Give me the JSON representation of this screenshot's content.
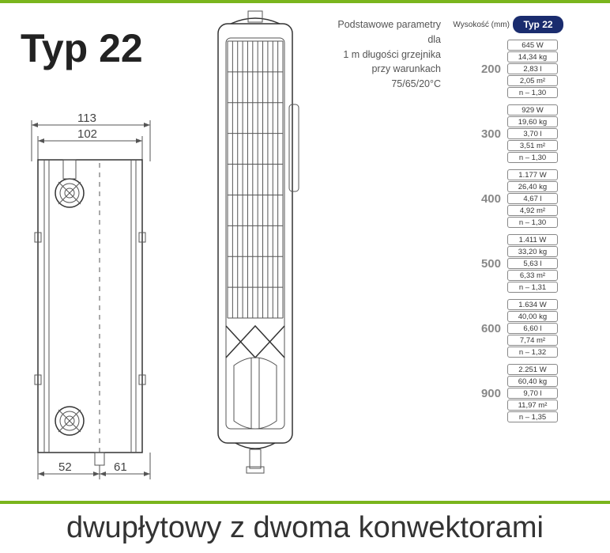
{
  "title": "Typ 22",
  "params": {
    "line1": "Podstawowe parametry dla",
    "line2": "1 m długości grzejnika",
    "line3": "przy warunkach",
    "line4": "75/65/20°C"
  },
  "footer": "dwupłytowy z dwoma konwektorami",
  "table": {
    "header_label": "Wysokość (mm)",
    "badge": "Typ 22",
    "badge_bg": "#1a2c6e",
    "groups": [
      {
        "height": "200",
        "rows": [
          "645 W",
          "14,34 kg",
          "2,83 l",
          "2,05 m²",
          "n – 1,30"
        ]
      },
      {
        "height": "300",
        "rows": [
          "929 W",
          "19,60 kg",
          "3,70 l",
          "3,51 m²",
          "n – 1,30"
        ]
      },
      {
        "height": "400",
        "rows": [
          "1.177 W",
          "26,40 kg",
          "4,67 l",
          "4,92 m²",
          "n – 1,30"
        ]
      },
      {
        "height": "500",
        "rows": [
          "1.411 W",
          "33,20 kg",
          "5,63 l",
          "6,33 m²",
          "n – 1,31"
        ]
      },
      {
        "height": "600",
        "rows": [
          "1.634 W",
          "40,00 kg",
          "6,60 l",
          "7,74 m²",
          "n – 1,32"
        ]
      },
      {
        "height": "900",
        "rows": [
          "2.251 W",
          "60,40 kg",
          "9,70 l",
          "11,97 m²",
          "n – 1,35"
        ]
      }
    ]
  },
  "left_diagram": {
    "dim_top1": "113",
    "dim_top2": "102",
    "dim_bot1": "52",
    "dim_bot2": "61",
    "outline_color": "#333",
    "fill_color": "#ffffff"
  },
  "top_diagram": {
    "outline_color": "#333",
    "grille_rows": 9,
    "grille_cols": 11
  },
  "colors": {
    "green_bar": "#7ab51d",
    "text_gray": "#555",
    "height_gray": "#888",
    "title_color": "#222"
  }
}
